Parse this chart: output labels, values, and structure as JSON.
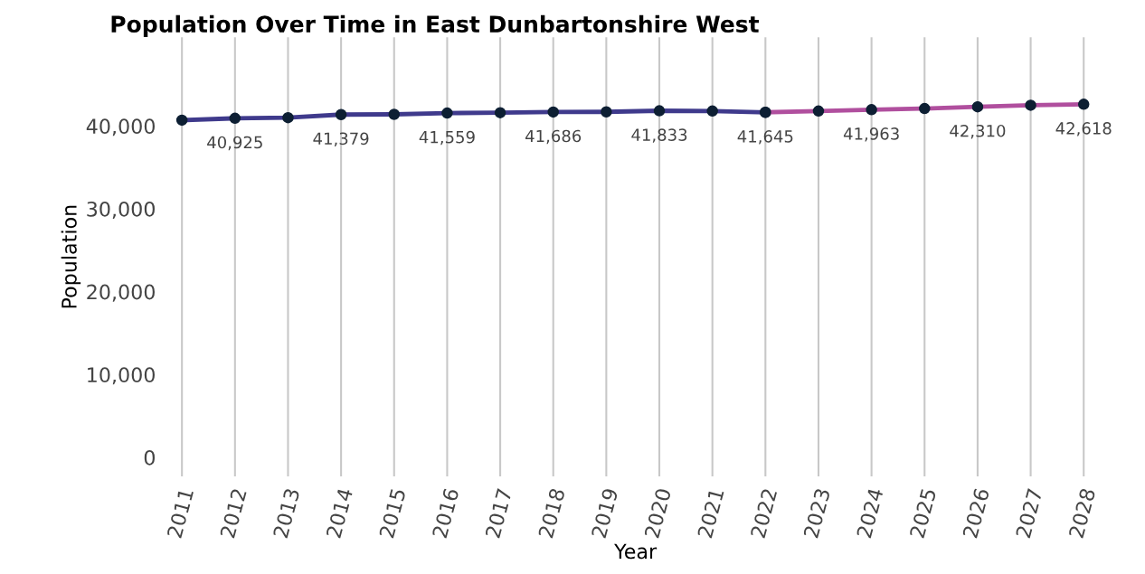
{
  "chart_data": {
    "type": "line",
    "title": "Population Over Time in East Dunbartonshire West",
    "xlabel": "Year",
    "ylabel": "Population",
    "categories": [
      "2011",
      "2012",
      "2013",
      "2014",
      "2015",
      "2016",
      "2017",
      "2018",
      "2019",
      "2020",
      "2021",
      "2022",
      "2023",
      "2024",
      "2025",
      "2026",
      "2027",
      "2028"
    ],
    "series": [
      {
        "color": "#3f3a8c",
        "values": [
          40700,
          40925,
          41000,
          41379,
          41400,
          41559,
          41600,
          41686,
          41700,
          41833,
          41800,
          41645,
          null,
          null,
          null,
          null,
          null,
          null
        ],
        "value_labels": [
          null,
          "40,925",
          null,
          "41,379",
          null,
          "41,559",
          null,
          "41,686",
          null,
          "41,833",
          null,
          null,
          null,
          null,
          null,
          null,
          null,
          null
        ]
      },
      {
        "color": "#b04f9e",
        "values": [
          null,
          null,
          null,
          null,
          null,
          null,
          null,
          null,
          null,
          null,
          null,
          41645,
          41800,
          41963,
          42100,
          42310,
          42500,
          42618
        ],
        "value_labels": [
          null,
          null,
          null,
          null,
          null,
          null,
          null,
          null,
          null,
          null,
          null,
          "41,645",
          null,
          "41,963",
          null,
          "42,310",
          null,
          "42,618"
        ]
      }
    ],
    "ylim": [
      -2300,
      50700
    ],
    "yticks": [
      {
        "value": 0,
        "label": "0"
      },
      {
        "value": 10000,
        "label": "10,000"
      },
      {
        "value": 20000,
        "label": "20,000"
      },
      {
        "value": 30000,
        "label": "30,000"
      },
      {
        "value": 40000,
        "label": "40,000"
      }
    ],
    "grid": "x",
    "marker": "circle",
    "line_style": "solid",
    "legend": false
  }
}
